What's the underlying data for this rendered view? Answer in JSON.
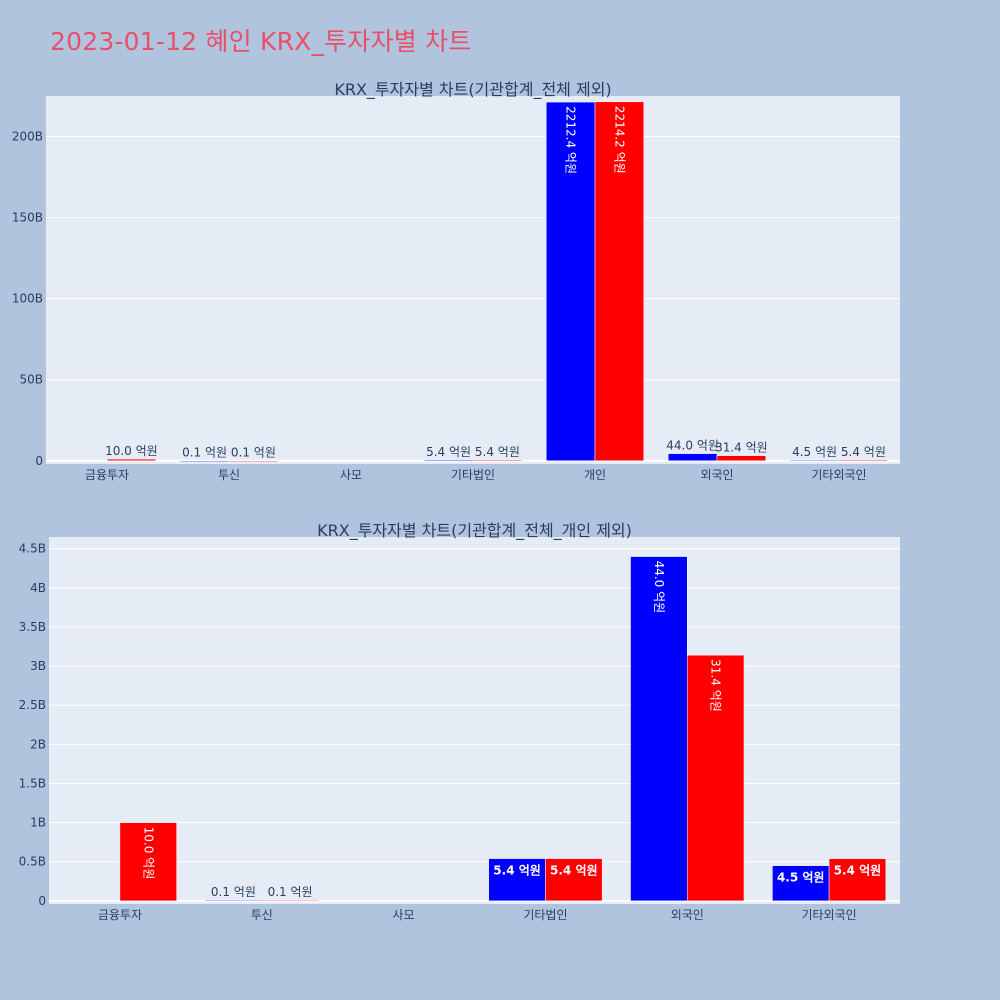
{
  "page": {
    "title": "2023-01-12 혜인 KRX_투자자별 차트"
  },
  "colors": {
    "buy": "#0000ff",
    "sell": "#ff0000",
    "plot_bg": "#e5ecf6",
    "paper_bg": "#b0c4de",
    "title": "#e8506a"
  },
  "chart_data": [
    {
      "type": "bar",
      "title": "KRX_투자자별 차트(기관합계_전체 제외)",
      "categories": [
        "금융투자",
        "투신",
        "사모",
        "기타법인",
        "개인",
        "외국인",
        "기타외국인"
      ],
      "series": [
        {
          "color": "#0000ff",
          "values": [
            0,
            0.01,
            0,
            0.54,
            221.24,
            4.4,
            0.45
          ],
          "labels": [
            "",
            "0.1 억원",
            "",
            "5.4 억원",
            "2212.4 억원",
            "44.0 억원",
            "4.5 억원"
          ]
        },
        {
          "color": "#ff0000",
          "values": [
            1.0,
            0.01,
            0,
            0.54,
            221.42,
            3.14,
            0.54
          ],
          "labels": [
            "10.0 억원",
            "0.1 억원",
            "",
            "5.4 억원",
            "2214.2 억원",
            "31.4 억원",
            "5.4 억원"
          ]
        }
      ],
      "ylim": [
        -2,
        225
      ],
      "yticks": [
        0,
        50,
        100,
        150,
        200
      ],
      "ytick_labels": [
        "0",
        "50B",
        "100B",
        "150B",
        "200B"
      ],
      "unit": "억원 x10 (B)",
      "grid": true
    },
    {
      "type": "bar",
      "title": "KRX_투자자별 차트(기관합계_전체_개인 제외)",
      "categories": [
        "금융투자",
        "투신",
        "사모",
        "기타법인",
        "외국인",
        "기타외국인"
      ],
      "series": [
        {
          "color": "#0000ff",
          "values": [
            0,
            0.01,
            0,
            0.54,
            4.4,
            0.45
          ],
          "labels": [
            "",
            "0.1 억원",
            "",
            "5.4 억원",
            "44.0 억원",
            "4.5 억원"
          ]
        },
        {
          "color": "#ff0000",
          "values": [
            1.0,
            0.01,
            0,
            0.54,
            3.14,
            0.54
          ],
          "labels": [
            "10.0 억원",
            "0.1 억원",
            "",
            "5.4 억원",
            "31.4 억원",
            "5.4 억원"
          ]
        }
      ],
      "ylim": [
        -0.04,
        4.65
      ],
      "yticks": [
        0,
        0.5,
        1,
        1.5,
        2,
        2.5,
        3,
        3.5,
        4,
        4.5
      ],
      "ytick_labels": [
        "0",
        "0.5B",
        "1B",
        "1.5B",
        "2B",
        "2.5B",
        "3B",
        "3.5B",
        "4B",
        "4.5B"
      ],
      "grid": true
    }
  ]
}
